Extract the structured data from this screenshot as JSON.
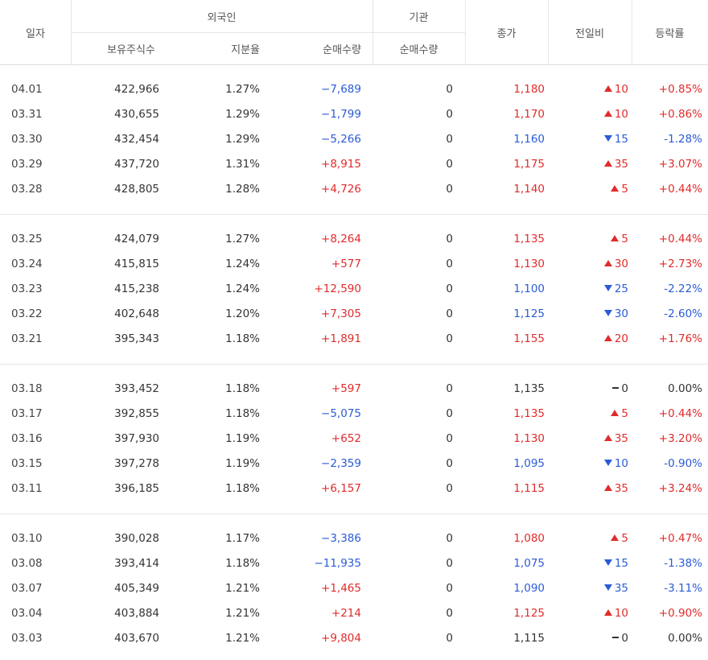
{
  "header": {
    "date": "일자",
    "foreign": "외국인",
    "institution": "기관",
    "close": "종가",
    "diff": "전일비",
    "rate": "등락률",
    "holdings": "보유주식수",
    "ratio": "지분율",
    "foreign_net": "순매수량",
    "inst_net": "순매수량"
  },
  "rows": [
    {
      "date": "04.01",
      "holdings": "422,966",
      "ratio": "1.27%",
      "foreign_net": "−7,689",
      "fdir": "down",
      "inst_net": "0",
      "close": "1,180",
      "dir": "up",
      "diff": "10",
      "rate": "+0.85%"
    },
    {
      "date": "03.31",
      "holdings": "430,655",
      "ratio": "1.29%",
      "foreign_net": "−1,799",
      "fdir": "down",
      "inst_net": "0",
      "close": "1,170",
      "dir": "up",
      "diff": "10",
      "rate": "+0.86%"
    },
    {
      "date": "03.30",
      "holdings": "432,454",
      "ratio": "1.29%",
      "foreign_net": "−5,266",
      "fdir": "down",
      "inst_net": "0",
      "close": "1,160",
      "dir": "down",
      "diff": "15",
      "rate": "-1.28%"
    },
    {
      "date": "03.29",
      "holdings": "437,720",
      "ratio": "1.31%",
      "foreign_net": "+8,915",
      "fdir": "up",
      "inst_net": "0",
      "close": "1,175",
      "dir": "up",
      "diff": "35",
      "rate": "+3.07%"
    },
    {
      "date": "03.28",
      "holdings": "428,805",
      "ratio": "1.28%",
      "foreign_net": "+4,726",
      "fdir": "up",
      "inst_net": "0",
      "close": "1,140",
      "dir": "up",
      "diff": "5",
      "rate": "+0.44%"
    },
    {
      "date": "03.25",
      "holdings": "424,079",
      "ratio": "1.27%",
      "foreign_net": "+8,264",
      "fdir": "up",
      "inst_net": "0",
      "close": "1,135",
      "dir": "up",
      "diff": "5",
      "rate": "+0.44%"
    },
    {
      "date": "03.24",
      "holdings": "415,815",
      "ratio": "1.24%",
      "foreign_net": "+577",
      "fdir": "up",
      "inst_net": "0",
      "close": "1,130",
      "dir": "up",
      "diff": "30",
      "rate": "+2.73%"
    },
    {
      "date": "03.23",
      "holdings": "415,238",
      "ratio": "1.24%",
      "foreign_net": "+12,590",
      "fdir": "up",
      "inst_net": "0",
      "close": "1,100",
      "dir": "down",
      "diff": "25",
      "rate": "-2.22%"
    },
    {
      "date": "03.22",
      "holdings": "402,648",
      "ratio": "1.20%",
      "foreign_net": "+7,305",
      "fdir": "up",
      "inst_net": "0",
      "close": "1,125",
      "dir": "down",
      "diff": "30",
      "rate": "-2.60%"
    },
    {
      "date": "03.21",
      "holdings": "395,343",
      "ratio": "1.18%",
      "foreign_net": "+1,891",
      "fdir": "up",
      "inst_net": "0",
      "close": "1,155",
      "dir": "up",
      "diff": "20",
      "rate": "+1.76%"
    },
    {
      "date": "03.18",
      "holdings": "393,452",
      "ratio": "1.18%",
      "foreign_net": "+597",
      "fdir": "up",
      "inst_net": "0",
      "close": "1,135",
      "dir": "flat",
      "diff": "0",
      "rate": "0.00%"
    },
    {
      "date": "03.17",
      "holdings": "392,855",
      "ratio": "1.18%",
      "foreign_net": "−5,075",
      "fdir": "down",
      "inst_net": "0",
      "close": "1,135",
      "dir": "up",
      "diff": "5",
      "rate": "+0.44%"
    },
    {
      "date": "03.16",
      "holdings": "397,930",
      "ratio": "1.19%",
      "foreign_net": "+652",
      "fdir": "up",
      "inst_net": "0",
      "close": "1,130",
      "dir": "up",
      "diff": "35",
      "rate": "+3.20%"
    },
    {
      "date": "03.15",
      "holdings": "397,278",
      "ratio": "1.19%",
      "foreign_net": "−2,359",
      "fdir": "down",
      "inst_net": "0",
      "close": "1,095",
      "dir": "down",
      "diff": "10",
      "rate": "-0.90%"
    },
    {
      "date": "03.11",
      "holdings": "396,185",
      "ratio": "1.18%",
      "foreign_net": "+6,157",
      "fdir": "up",
      "inst_net": "0",
      "close": "1,115",
      "dir": "up",
      "diff": "35",
      "rate": "+3.24%"
    },
    {
      "date": "03.10",
      "holdings": "390,028",
      "ratio": "1.17%",
      "foreign_net": "−3,386",
      "fdir": "down",
      "inst_net": "0",
      "close": "1,080",
      "dir": "up",
      "diff": "5",
      "rate": "+0.47%"
    },
    {
      "date": "03.08",
      "holdings": "393,414",
      "ratio": "1.18%",
      "foreign_net": "−11,935",
      "fdir": "down",
      "inst_net": "0",
      "close": "1,075",
      "dir": "down",
      "diff": "15",
      "rate": "-1.38%"
    },
    {
      "date": "03.07",
      "holdings": "405,349",
      "ratio": "1.21%",
      "foreign_net": "+1,465",
      "fdir": "up",
      "inst_net": "0",
      "close": "1,090",
      "dir": "down",
      "diff": "35",
      "rate": "-3.11%"
    },
    {
      "date": "03.04",
      "holdings": "403,884",
      "ratio": "1.21%",
      "foreign_net": "+214",
      "fdir": "up",
      "inst_net": "0",
      "close": "1,125",
      "dir": "up",
      "diff": "10",
      "rate": "+0.90%"
    },
    {
      "date": "03.03",
      "holdings": "403,670",
      "ratio": "1.21%",
      "foreign_net": "+9,804",
      "fdir": "up",
      "inst_net": "0",
      "close": "1,115",
      "dir": "flat",
      "diff": "0",
      "rate": "0.00%"
    }
  ],
  "colors": {
    "up": "#e12b2b",
    "down": "#2a5bd7",
    "flat": "#333333"
  }
}
